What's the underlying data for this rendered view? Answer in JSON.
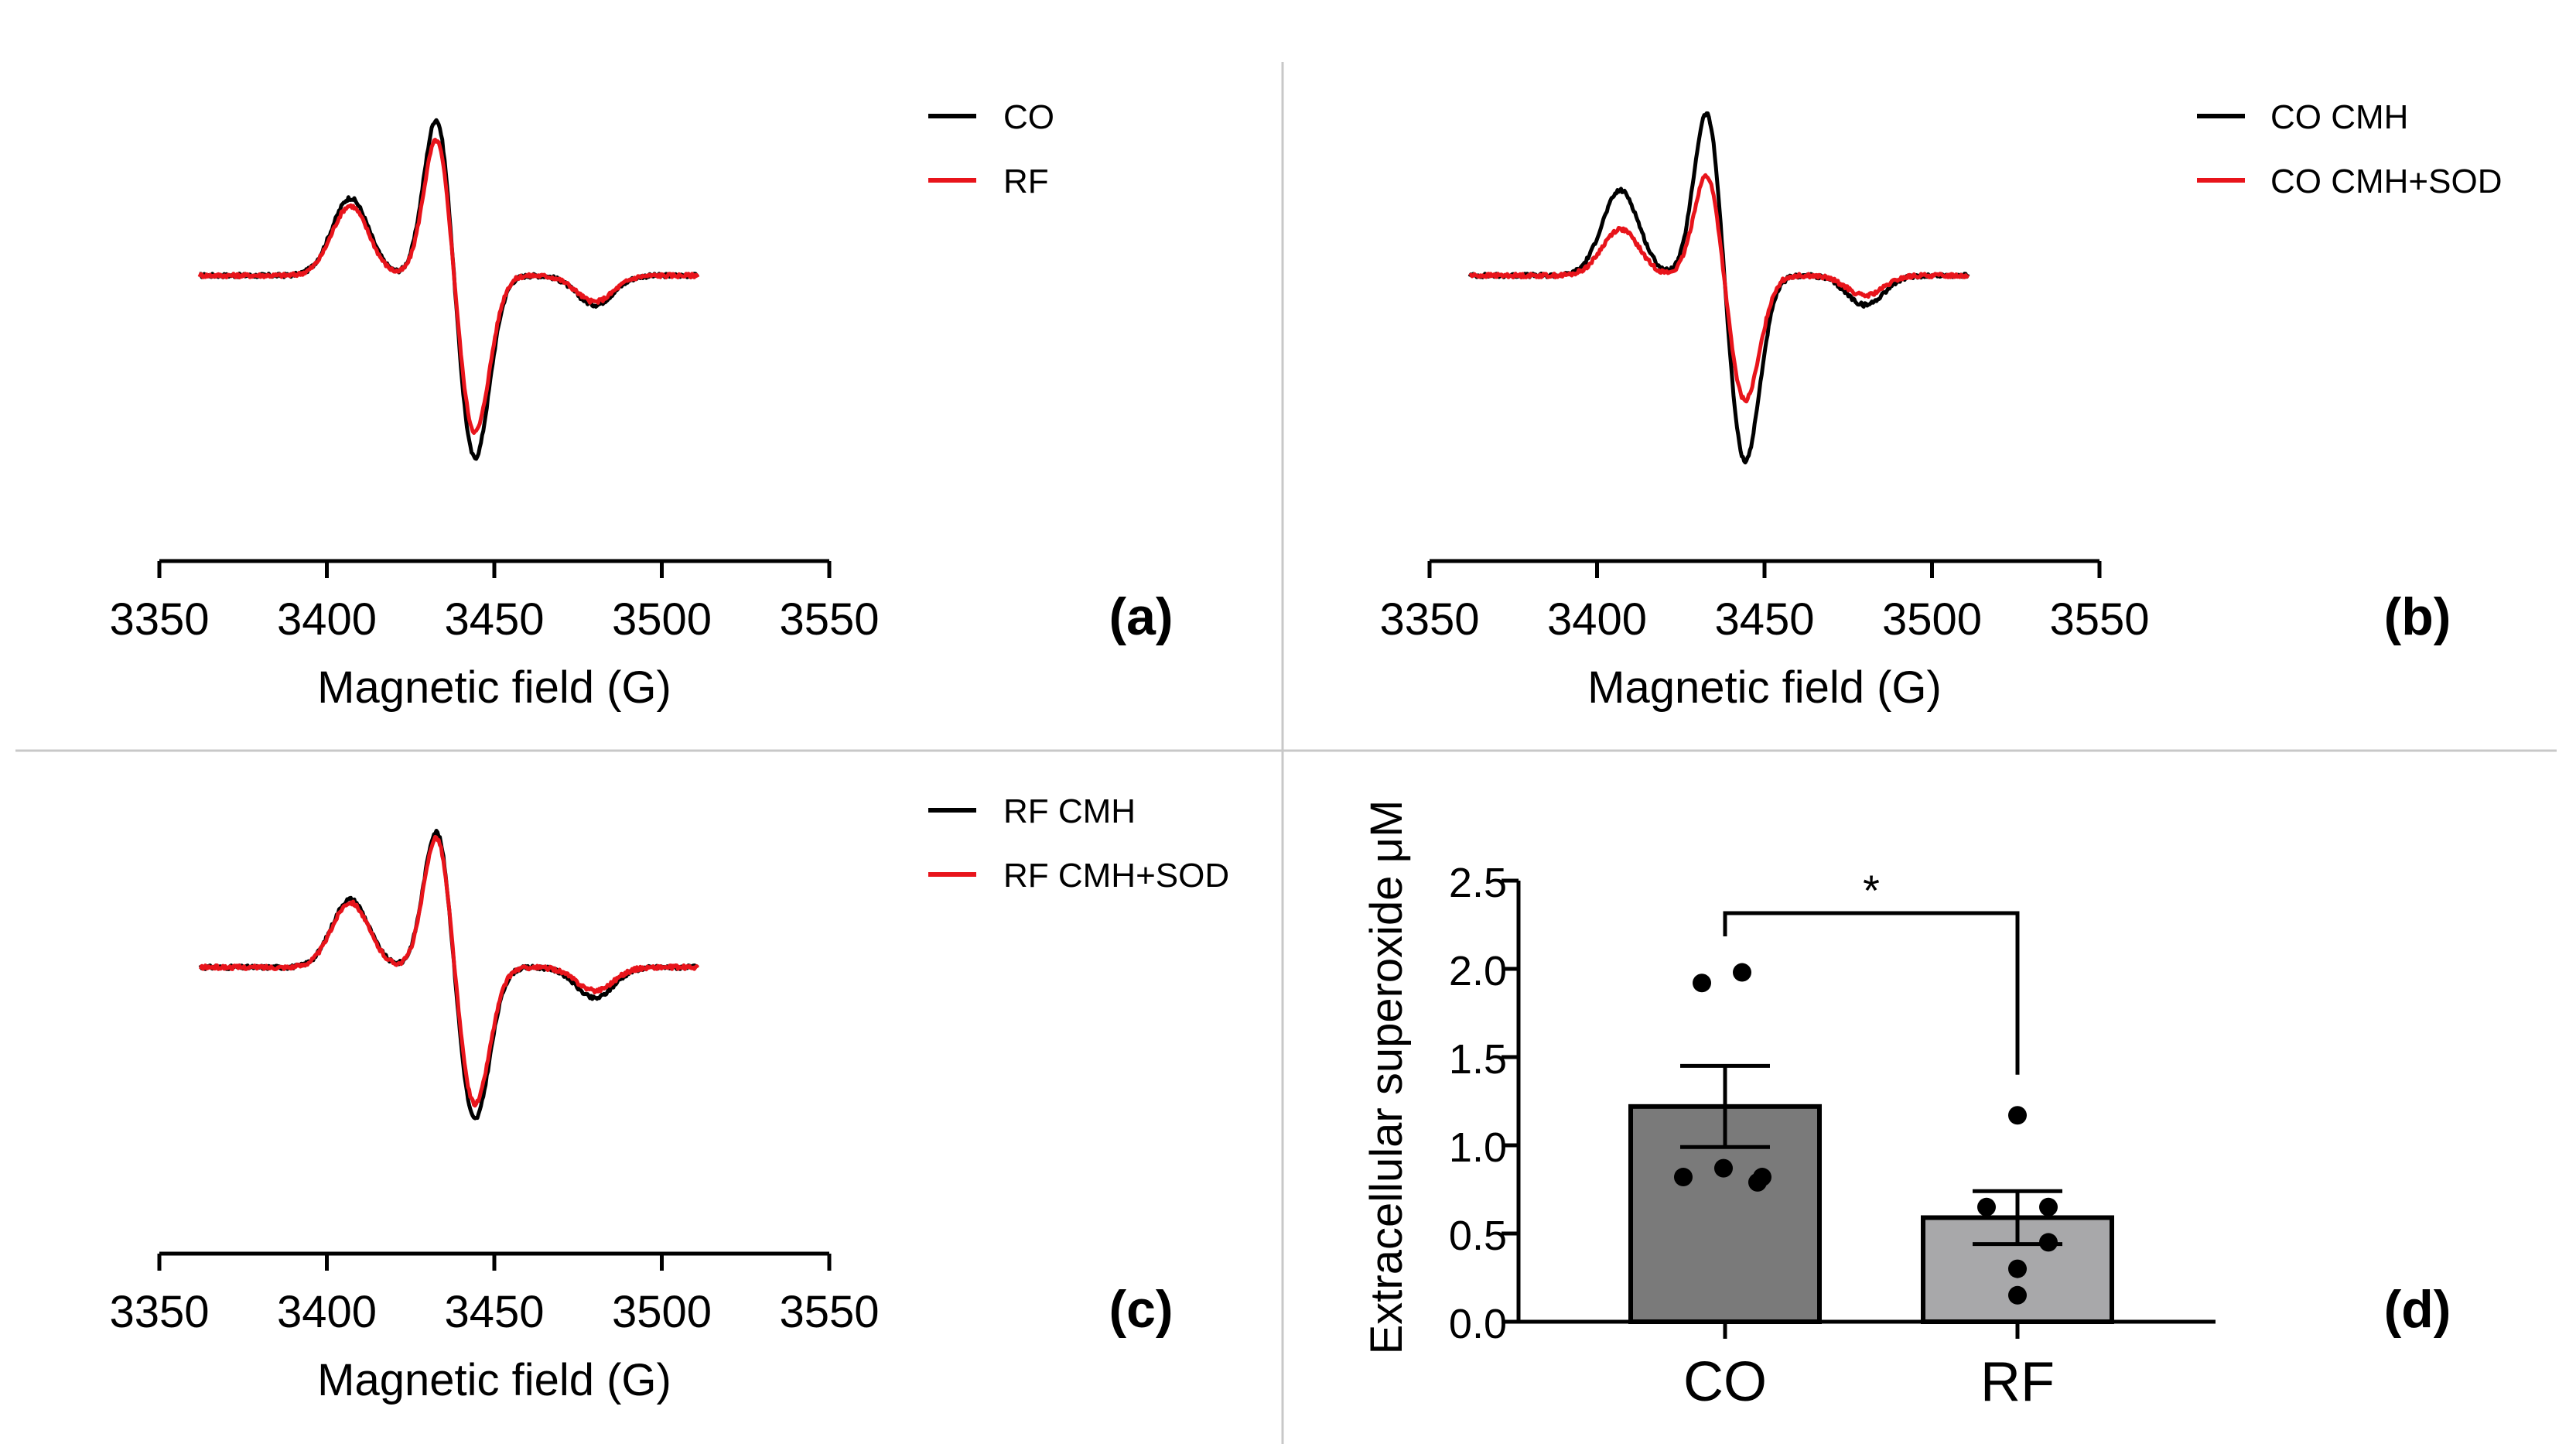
{
  "chart_data": [
    {
      "panel": "(a)",
      "type": "line",
      "xlabel": "Magnetic field (G)",
      "ylabel": "",
      "xlim": [
        3350,
        3550
      ],
      "xticks": [
        "3350",
        "3400",
        "3450",
        "3500",
        "3550"
      ],
      "x_data_range": [
        3362,
        3511
      ],
      "series": [
        {
          "name": "CO",
          "color": "#000000",
          "amplitude": 1.0,
          "p1": 0.5,
          "p2": 1.06,
          "trough": -1.2,
          "p4": -0.19
        },
        {
          "name": "RF",
          "color": "#e8141b",
          "amplitude": 1.0,
          "p1": 0.45,
          "p2": 0.92,
          "trough": -1.03,
          "p4": -0.17
        }
      ]
    },
    {
      "panel": "(b)",
      "type": "line",
      "xlabel": "Magnetic field (G)",
      "ylabel": "",
      "xlim": [
        3350,
        3550
      ],
      "xticks": [
        "3350",
        "3400",
        "3450",
        "3500",
        "3550"
      ],
      "x_data_range": [
        3362,
        3511
      ],
      "series": [
        {
          "name": "CO CMH",
          "color": "#000000",
          "amplitude": 1.0,
          "p1": 0.55,
          "p2": 1.1,
          "trough": -1.22,
          "p4": -0.19
        },
        {
          "name": "CO CMH+SOD",
          "color": "#e8141b",
          "amplitude": 1.0,
          "p1": 0.3,
          "p2": 0.68,
          "trough": -0.82,
          "p4": -0.13
        }
      ]
    },
    {
      "panel": "(c)",
      "type": "line",
      "xlabel": "Magnetic field (G)",
      "ylabel": "",
      "xlim": [
        3350,
        3550
      ],
      "xticks": [
        "3350",
        "3400",
        "3450",
        "3500",
        "3550"
      ],
      "x_data_range": [
        3362,
        3511
      ],
      "series": [
        {
          "name": "RF CMH",
          "color": "#000000",
          "amplitude": 1.0,
          "p1": 0.44,
          "p2": 0.92,
          "trough": -1.0,
          "p4": -0.2
        },
        {
          "name": "RF CMH+SOD",
          "color": "#e8141b",
          "amplitude": 1.0,
          "p1": 0.42,
          "p2": 0.88,
          "trough": -0.9,
          "p4": -0.15
        }
      ]
    },
    {
      "panel": "(d)",
      "type": "bar",
      "title": "",
      "xlabel": "",
      "ylabel": "Extracellular superoxide μM",
      "ylim": [
        0,
        2.5
      ],
      "yticks": [
        "0.0",
        "0.5",
        "1.0",
        "1.5",
        "2.0",
        "2.5"
      ],
      "categories": [
        "CO",
        "RF"
      ],
      "values": [
        1.22,
        0.59
      ],
      "sem": [
        0.23,
        0.15
      ],
      "bar_colors": [
        "#7a7a7a",
        "#a8a8aa"
      ],
      "points": [
        [
          1.92,
          1.98,
          0.82,
          0.87,
          0.82,
          0.79
        ],
        [
          1.17,
          0.65,
          0.65,
          0.45,
          0.3,
          0.15
        ]
      ],
      "significance": "*"
    }
  ]
}
